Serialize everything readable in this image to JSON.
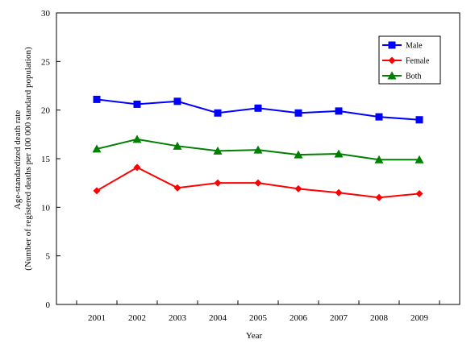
{
  "chart_data": {
    "type": "line",
    "title": "",
    "xlabel": "Year",
    "ylabel_lines": [
      "Age-standardized death rate",
      "(Number of registered deaths per 100 000 standard population)"
    ],
    "categories": [
      "2001",
      "2002",
      "2003",
      "2004",
      "2005",
      "2006",
      "2007",
      "2008",
      "2009"
    ],
    "ylim": [
      0,
      30
    ],
    "yticks": [
      0,
      5,
      10,
      15,
      20,
      25,
      30
    ],
    "grid": false,
    "legend_position": "top-right",
    "series": [
      {
        "name": "Male",
        "color": "#0000ff",
        "marker": "square",
        "values": [
          21.1,
          20.6,
          20.9,
          19.7,
          20.2,
          19.7,
          19.9,
          19.3,
          19.0
        ]
      },
      {
        "name": "Female",
        "color": "#ff0000",
        "marker": "diamond",
        "values": [
          11.7,
          14.1,
          12.0,
          12.5,
          12.5,
          11.9,
          11.5,
          11.0,
          11.4
        ]
      },
      {
        "name": "Both",
        "color": "#008000",
        "marker": "triangle",
        "values": [
          16.0,
          17.0,
          16.3,
          15.8,
          15.9,
          15.4,
          15.5,
          14.9,
          14.9
        ]
      }
    ]
  }
}
